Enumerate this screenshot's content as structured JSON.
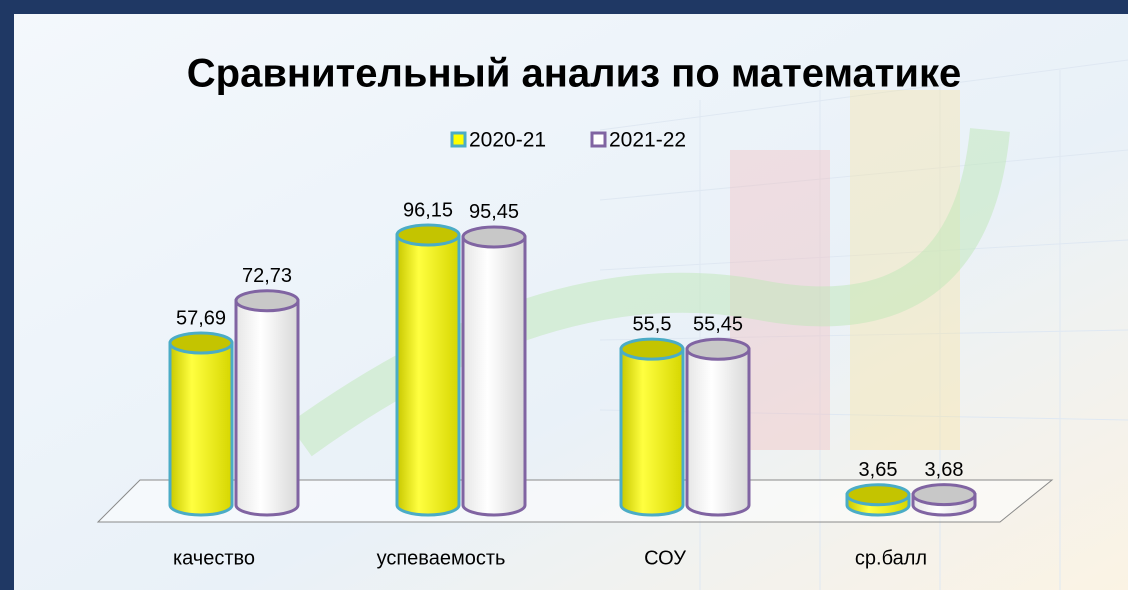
{
  "chart_data": {
    "type": "bar3d",
    "title": "Сравнительный анализ по математике",
    "categories": [
      "качество",
      "успеваемость",
      "СОУ",
      "ср.балл"
    ],
    "series": [
      {
        "name": "2020-21",
        "color": "#ffff00",
        "edge": "#4bacc6",
        "values": [
          57.69,
          96.15,
          55.5,
          3.65
        ],
        "value_labels": [
          "57,69",
          "96,15",
          "55,5",
          "3,65"
        ]
      },
      {
        "name": "2021-22",
        "color": "#ffffff",
        "edge": "#8064a2",
        "values": [
          72.73,
          95.45,
          55.45,
          3.68
        ],
        "value_labels": [
          "72,73",
          "95,45",
          "55,45",
          "3,68"
        ]
      }
    ],
    "legend": "top"
  }
}
